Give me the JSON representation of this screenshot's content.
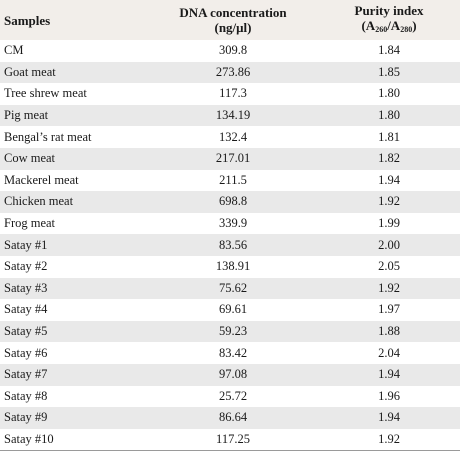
{
  "table": {
    "headers": {
      "samples": "Samples",
      "dna_line1": "DNA concentration",
      "dna_line2": "(ng/μl)",
      "purity_line1": "Purity index",
      "purity_open": "(A",
      "purity_sub1": "260",
      "purity_slash": "/A",
      "purity_sub2": "280",
      "purity_close": ")"
    },
    "rows": [
      {
        "sample": "CM",
        "dna": "309.8",
        "purity": "1.84"
      },
      {
        "sample": "Goat meat",
        "dna": "273.86",
        "purity": "1.85"
      },
      {
        "sample": "Tree shrew meat",
        "dna": "117.3",
        "purity": "1.80"
      },
      {
        "sample": "Pig meat",
        "dna": "134.19",
        "purity": "1.80"
      },
      {
        "sample": "Bengal’s rat meat",
        "dna": "132.4",
        "purity": "1.81"
      },
      {
        "sample": "Cow meat",
        "dna": "217.01",
        "purity": "1.82"
      },
      {
        "sample": "Mackerel meat",
        "dna": "211.5",
        "purity": "1.94"
      },
      {
        "sample": "Chicken meat",
        "dna": "698.8",
        "purity": "1.92"
      },
      {
        "sample": "Frog meat",
        "dna": "339.9",
        "purity": "1.99"
      },
      {
        "sample": "Satay #1",
        "dna": "83.56",
        "purity": "2.00"
      },
      {
        "sample": "Satay #2",
        "dna": "138.91",
        "purity": "2.05"
      },
      {
        "sample": "Satay #3",
        "dna": "75.62",
        "purity": "1.92"
      },
      {
        "sample": "Satay #4",
        "dna": "69.61",
        "purity": "1.97"
      },
      {
        "sample": "Satay #5",
        "dna": "59.23",
        "purity": "1.88"
      },
      {
        "sample": "Satay #6",
        "dna": "83.42",
        "purity": "2.04"
      },
      {
        "sample": "Satay #7",
        "dna": "97.08",
        "purity": "1.94"
      },
      {
        "sample": "Satay #8",
        "dna": "25.72",
        "purity": "1.96"
      },
      {
        "sample": "Satay #9",
        "dna": "86.64",
        "purity": "1.94"
      },
      {
        "sample": "Satay #10",
        "dna": "117.25",
        "purity": "1.92"
      }
    ]
  }
}
